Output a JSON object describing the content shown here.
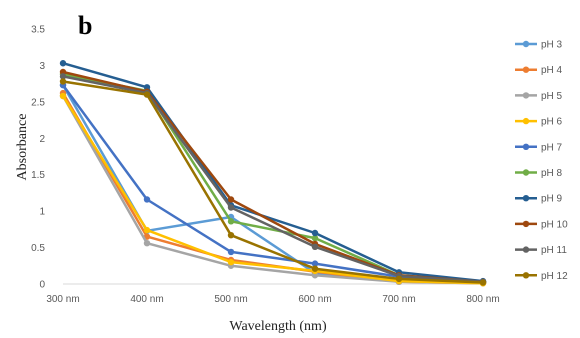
{
  "chart_data": {
    "type": "line",
    "panel_label": "b",
    "xlabel": "Wavelength (nm)",
    "ylabel": "Absorbance",
    "categories": [
      "300 nm",
      "400 nm",
      "500 nm",
      "600 nm",
      "700 nm",
      "800 nm"
    ],
    "ylim": [
      0,
      3.5
    ],
    "yticks": [
      "0",
      "0.5",
      "1",
      "1.5",
      "2",
      "2.5",
      "3",
      "3.5"
    ],
    "grid": false,
    "legend_position": "right",
    "series": [
      {
        "name": "pH 3",
        "color": "#5B9BD5",
        "values": [
          2.73,
          0.73,
          0.92,
          0.15,
          0.04,
          0.02
        ]
      },
      {
        "name": "pH 4",
        "color": "#ED7D31",
        "values": [
          2.62,
          0.65,
          0.33,
          0.17,
          0.03,
          0.01
        ]
      },
      {
        "name": "pH 5",
        "color": "#A5A5A5",
        "values": [
          2.58,
          0.56,
          0.25,
          0.12,
          0.03,
          0.01
        ]
      },
      {
        "name": "pH 6",
        "color": "#FFC000",
        "values": [
          2.58,
          0.74,
          0.3,
          0.18,
          0.04,
          0.01
        ]
      },
      {
        "name": "pH 7",
        "color": "#4472C4",
        "values": [
          2.73,
          1.16,
          0.44,
          0.28,
          0.1,
          0.03
        ]
      },
      {
        "name": "pH 8",
        "color": "#70AD47",
        "values": [
          2.88,
          2.65,
          0.86,
          0.63,
          0.12,
          0.03
        ]
      },
      {
        "name": "pH 9",
        "color": "#255E91",
        "values": [
          3.03,
          2.7,
          1.08,
          0.7,
          0.16,
          0.04
        ]
      },
      {
        "name": "pH 10",
        "color": "#9E480E",
        "values": [
          2.91,
          2.64,
          1.16,
          0.55,
          0.12,
          0.03
        ]
      },
      {
        "name": "pH 11",
        "color": "#636363",
        "values": [
          2.85,
          2.62,
          1.05,
          0.51,
          0.11,
          0.03
        ]
      },
      {
        "name": "pH 12",
        "color": "#997300",
        "values": [
          2.78,
          2.6,
          0.67,
          0.21,
          0.07,
          0.02
        ]
      }
    ]
  }
}
